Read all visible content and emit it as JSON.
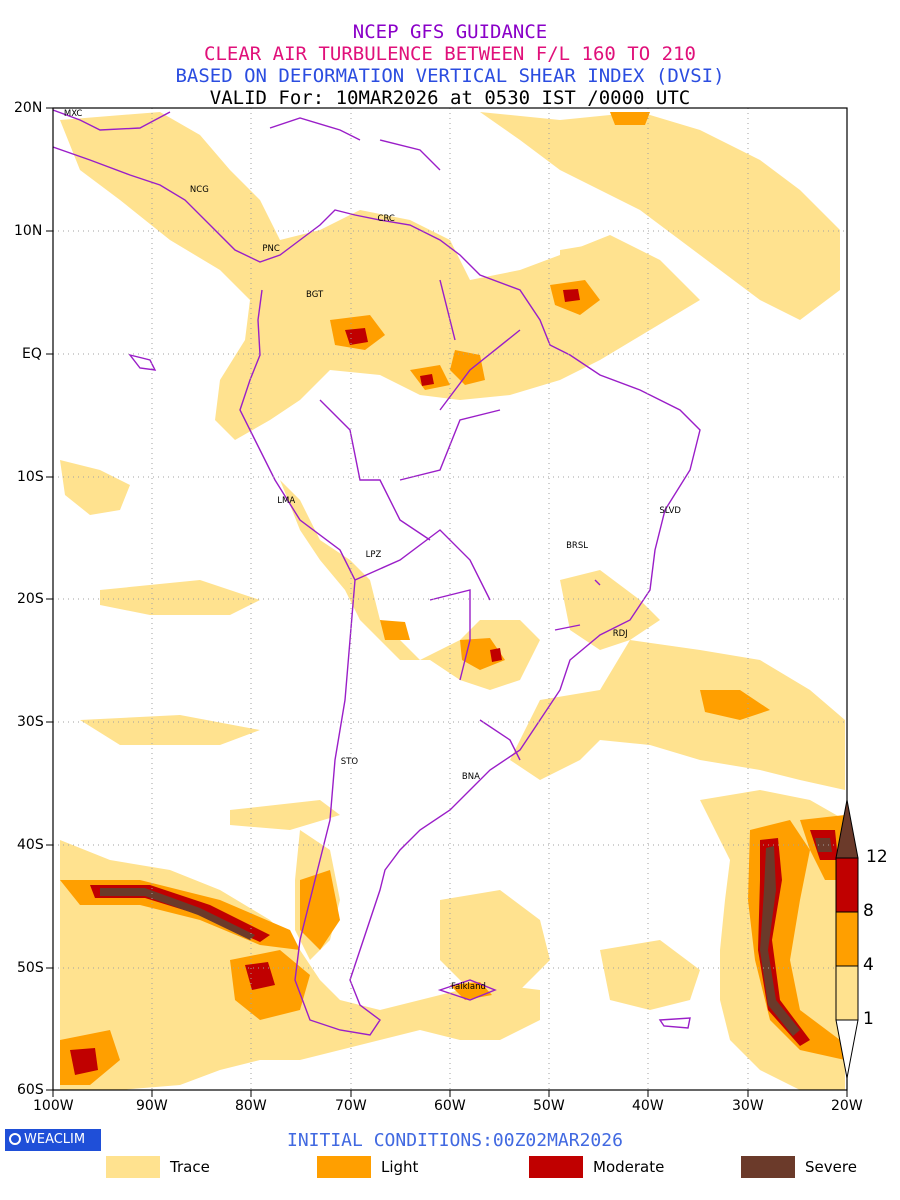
{
  "header": {
    "line1": "NCEP GFS GUIDANCE",
    "line2": "CLEAR AIR TURBULENCE BETWEEN F/L 160 TO 210",
    "line3": "BASED ON DEFORMATION VERTICAL SHEAR INDEX (DVSI)",
    "line4": "VALID For: 10MAR2026 at 0530 IST /0000 UTC"
  },
  "colors": {
    "title1": "#8a00c8",
    "title2": "#e0107a",
    "title3": "#2b4de0",
    "title4": "#000000",
    "coast": "#9a1ec8",
    "trace": "#ffe28f",
    "light": "#ff9f00",
    "moderate": "#c00000",
    "severe": "#6b3a2a"
  },
  "axes": {
    "lon_labels": [
      "100W",
      "90W",
      "80W",
      "70W",
      "60W",
      "50W",
      "40W",
      "30W",
      "20W"
    ],
    "lat_labels": [
      "20N",
      "10N",
      "EQ",
      "10S",
      "20S",
      "30S",
      "40S",
      "50S",
      "60S"
    ]
  },
  "cities": [
    {
      "name": "MXC",
      "lon": -98.5,
      "lat": 19.4
    },
    {
      "name": "NCG",
      "lon": -85.8,
      "lat": 13.2
    },
    {
      "name": "PNC",
      "lon": -78.5,
      "lat": 8.4
    },
    {
      "name": "CRC",
      "lon": -66.9,
      "lat": 10.9
    },
    {
      "name": "BGT",
      "lon": -74.1,
      "lat": 4.7
    },
    {
      "name": "LMA",
      "lon": -77.0,
      "lat": -12.1
    },
    {
      "name": "LPZ",
      "lon": -68.1,
      "lat": -16.5
    },
    {
      "name": "SLVD",
      "lon": -38.5,
      "lat": -12.9
    },
    {
      "name": "BRSL",
      "lon": -47.9,
      "lat": -15.8
    },
    {
      "name": "RDJ",
      "lon": -43.2,
      "lat": -22.9
    },
    {
      "name": "STO",
      "lon": -70.6,
      "lat": -33.4
    },
    {
      "name": "BNA",
      "lon": -58.4,
      "lat": -34.6
    },
    {
      "name": "Falkland",
      "lon": -59.5,
      "lat": -51.7
    }
  ],
  "colorbar": {
    "labels": [
      "12",
      "8",
      "4",
      "1"
    ]
  },
  "footer": {
    "logo": "WEACLIM",
    "initial": "INITIAL CONDITIONS:00Z02MAR2026"
  },
  "legend": [
    {
      "label": "Trace",
      "color": "#ffe28f"
    },
    {
      "label": "Light",
      "color": "#ff9f00"
    },
    {
      "label": "Moderate",
      "color": "#c00000"
    },
    {
      "label": "Severe",
      "color": "#6b3a2a"
    }
  ]
}
